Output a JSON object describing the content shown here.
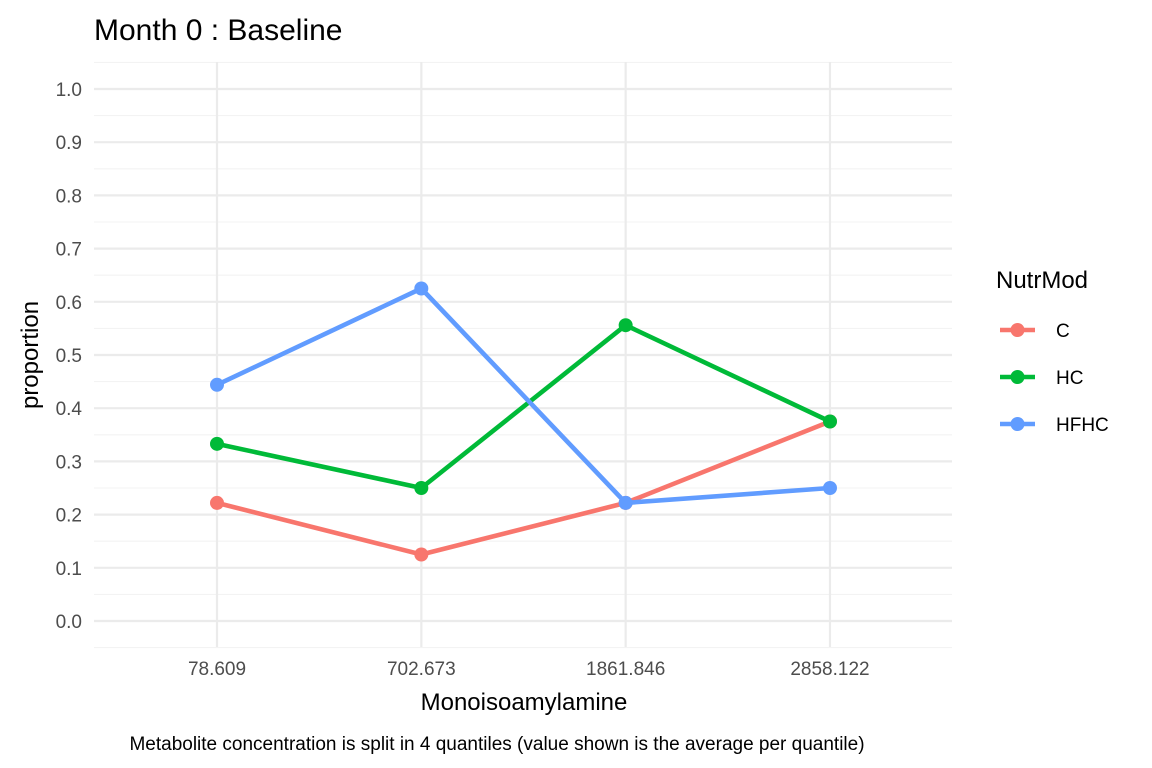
{
  "chart_data": {
    "type": "line",
    "title": "Month 0 : Baseline",
    "xlabel": "Monoisoamylamine",
    "ylabel": "proportion",
    "caption": "Metabolite concentration is split in 4 quantiles (value shown is the average per quantile)",
    "categories": [
      "78.609",
      "702.673",
      "1861.846",
      "2858.122"
    ],
    "ylim": [
      0,
      1
    ],
    "y_ticks": [
      "0.0",
      "0.1",
      "0.2",
      "0.3",
      "0.4",
      "0.5",
      "0.6",
      "0.7",
      "0.8",
      "0.9",
      "1.0"
    ],
    "grid": true,
    "legend_title": "NutrMod",
    "legend_position": "right",
    "series": [
      {
        "name": "C",
        "color": "#F8766D",
        "values": [
          0.222,
          0.125,
          0.222,
          0.375
        ]
      },
      {
        "name": "HC",
        "color": "#00BA38",
        "values": [
          0.333,
          0.25,
          0.556,
          0.375
        ]
      },
      {
        "name": "HFHC",
        "color": "#619CFF",
        "values": [
          0.444,
          0.625,
          0.222,
          0.25
        ]
      }
    ]
  }
}
